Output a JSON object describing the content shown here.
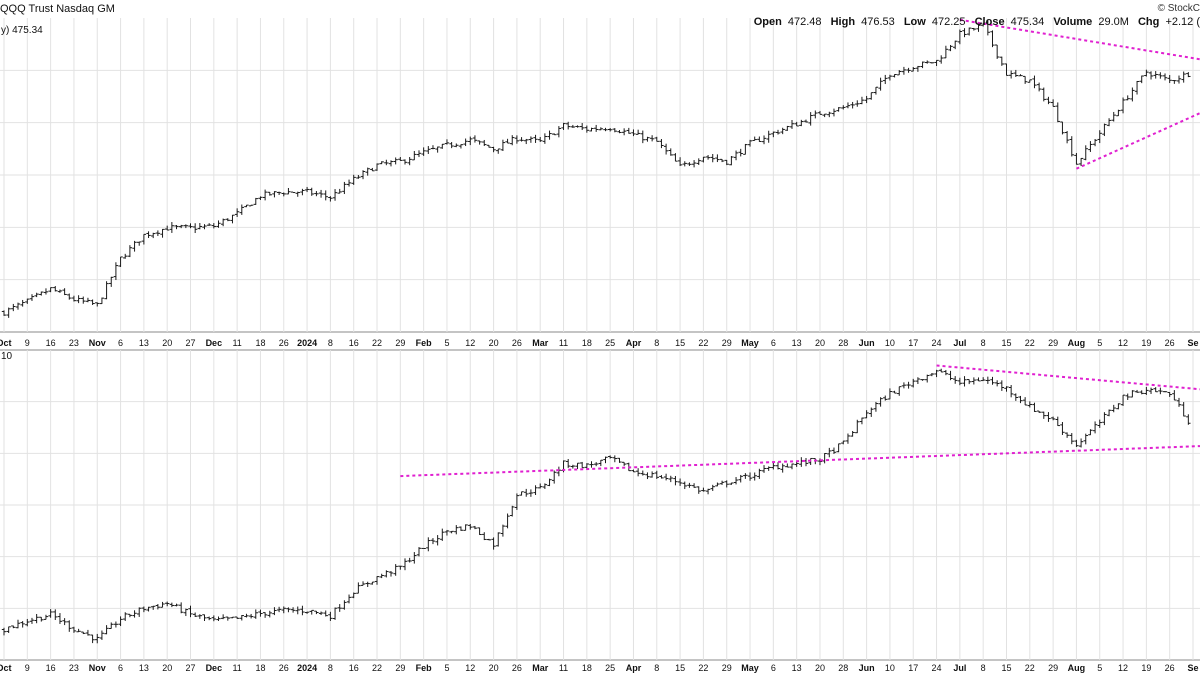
{
  "header": {
    "title": "QQQ Trust Nasdaq GM",
    "watermark": "© StockC",
    "open_label": "Open",
    "open": "472.48",
    "high_label": "High",
    "high": "476.53",
    "low_label": "Low",
    "low": "472.25",
    "close_label": "Close",
    "close": "475.34",
    "volume_label": "Volume",
    "volume": "29.0M",
    "chg_label": "Chg",
    "chg": "+2.12 ("
  },
  "upper_legend": "y) 475.34",
  "lower_legend": "10",
  "colors": {
    "bars": "#1a1a1a",
    "trendlines": "#e020d0",
    "grid": "#e2e2e2",
    "panel_border": "#8a8a8a",
    "text": "#111111"
  },
  "chart_data": [
    {
      "type": "ohlc",
      "panel": "upper",
      "series_name": "QQQ Trust Nasdaq GM",
      "grid": true,
      "x": [
        "Oct",
        "9",
        "16",
        "23",
        "Nov",
        "6",
        "13",
        "20",
        "27",
        "Dec",
        "11",
        "18",
        "26",
        "2024",
        "8",
        "16",
        "22",
        "29",
        "Feb",
        "5",
        "12",
        "20",
        "26",
        "Mar",
        "11",
        "18",
        "25",
        "Apr",
        "8",
        "15",
        "22",
        "29",
        "May",
        "6",
        "13",
        "20",
        "28",
        "Jun",
        "10",
        "17",
        "24",
        "Jul",
        "8",
        "15",
        "22",
        "29",
        "Aug",
        "5",
        "12",
        "19",
        "26",
        "Se"
      ],
      "x_labels": [
        "Oct",
        "9",
        "16",
        "23",
        "Nov",
        "6",
        "13",
        "20",
        "27",
        "Dec",
        "11",
        "18",
        "26",
        "2024",
        "8",
        "16",
        "22",
        "29",
        "Feb",
        "5",
        "12",
        "20",
        "26",
        "Mar",
        "11",
        "18",
        "25",
        "Apr",
        "8",
        "15",
        "22",
        "29",
        "May",
        "6",
        "13",
        "20",
        "28",
        "Jun",
        "10",
        "17",
        "24",
        "Jul",
        "8",
        "15",
        "22",
        "29",
        "Aug",
        "5",
        "12",
        "19",
        "26",
        "Se"
      ],
      "close": [
        341,
        347,
        354,
        348,
        345,
        371,
        384,
        388,
        388,
        389,
        396,
        406,
        408,
        408,
        405,
        415,
        423,
        425,
        430,
        434,
        437,
        432,
        438,
        436,
        445,
        443,
        444,
        440,
        436,
        422,
        428,
        425,
        435,
        441,
        446,
        452,
        455,
        460,
        474,
        478,
        481,
        496,
        501,
        474,
        470,
        455,
        424,
        441,
        458,
        475,
        470,
        475
      ],
      "ylim": [
        330,
        505
      ],
      "annotations": [
        {
          "type": "trendline",
          "style": "dashed",
          "from": [
            "Jul",
            504
          ],
          "to": [
            "Se",
            482
          ]
        },
        {
          "type": "trendline",
          "style": "dashed",
          "from": [
            "Aug",
            421
          ],
          "to": [
            "Se",
            452
          ]
        }
      ]
    },
    {
      "type": "ohlc",
      "panel": "lower",
      "grid": true,
      "x": [
        "Oct",
        "9",
        "16",
        "23",
        "Nov",
        "6",
        "13",
        "20",
        "27",
        "Dec",
        "11",
        "18",
        "26",
        "2024",
        "8",
        "16",
        "22",
        "29",
        "Feb",
        "5",
        "12",
        "20",
        "26",
        "Mar",
        "11",
        "18",
        "25",
        "Apr",
        "8",
        "15",
        "22",
        "29",
        "May",
        "6",
        "13",
        "20",
        "28",
        "Jun",
        "10",
        "17",
        "24",
        "Jul",
        "8",
        "15",
        "22",
        "29",
        "Aug",
        "5",
        "12",
        "19",
        "26",
        "Se"
      ],
      "x_labels": [
        "Oct",
        "9",
        "16",
        "23",
        "Nov",
        "6",
        "13",
        "20",
        "27",
        "Dec",
        "11",
        "18",
        "26",
        "2024",
        "8",
        "16",
        "22",
        "29",
        "Feb",
        "5",
        "12",
        "20",
        "26",
        "Mar",
        "11",
        "18",
        "25",
        "Apr",
        "8",
        "15",
        "22",
        "29",
        "May",
        "6",
        "13",
        "20",
        "28",
        "Jun",
        "10",
        "17",
        "24",
        "Jul",
        "8",
        "15",
        "22",
        "29",
        "Aug",
        "5",
        "12",
        "19",
        "26",
        "Se"
      ],
      "close": [
        30,
        38,
        44,
        30,
        20,
        40,
        50,
        55,
        44,
        38,
        40,
        45,
        48,
        48,
        43,
        67,
        80,
        90,
        110,
        125,
        130,
        112,
        160,
        166,
        190,
        188,
        195,
        182,
        178,
        172,
        163,
        172,
        178,
        187,
        190,
        194,
        210,
        240,
        258,
        270,
        280,
        268,
        272,
        263,
        245,
        232,
        208,
        230,
        255,
        262,
        258,
        225
      ],
      "ylim": [
        0,
        300
      ],
      "annotations": [
        {
          "type": "trendline",
          "style": "dashed",
          "from": [
            "24",
            285
          ],
          "to": [
            "Se",
            262
          ]
        },
        {
          "type": "trendline",
          "style": "dashed",
          "from": [
            "29",
            178
          ],
          "to": [
            "Se",
            207
          ]
        }
      ]
    }
  ]
}
